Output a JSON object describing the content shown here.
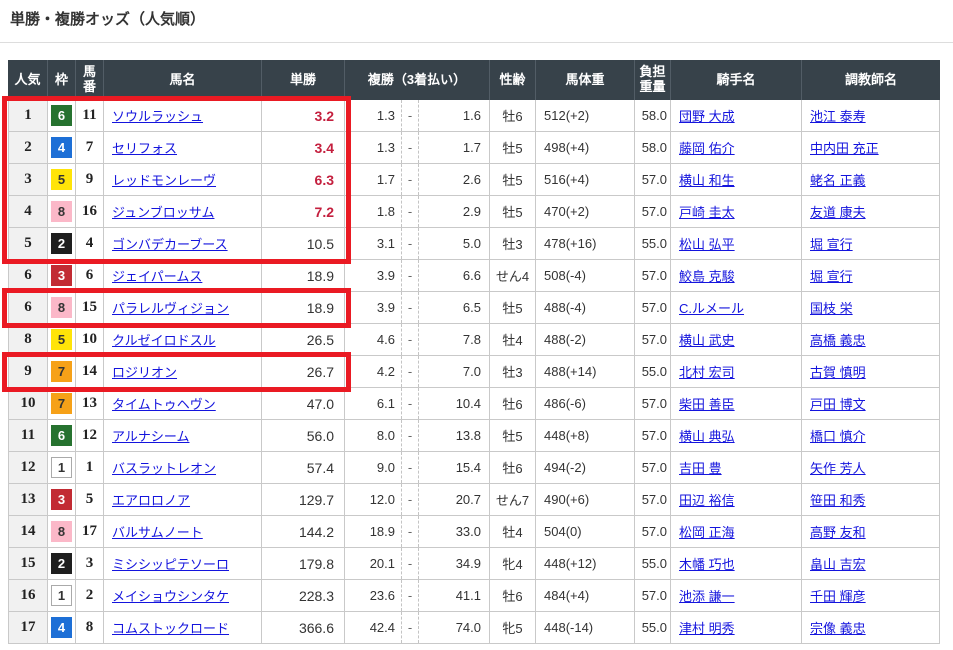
{
  "page": {
    "title": "単勝・複勝オッズ（人気順）"
  },
  "colors": {
    "header_bg": "#37424a",
    "link": "#1414dd",
    "hot_odds_red": "#c41f3e",
    "highlight_red": "#ea1a23"
  },
  "table": {
    "headers": {
      "ninki": "人気",
      "waku": "枠",
      "umaban": "馬番",
      "bamei": "馬名",
      "tansho": "単勝",
      "fukusho": "複勝（3着払い）",
      "seirei": "性齢",
      "bataiju": "馬体重",
      "futan": "負担重量",
      "kishu": "騎手名",
      "chokyoshi": "調教師名"
    },
    "place_dash": "-",
    "rows": [
      {
        "rank": "1",
        "waku": "6",
        "umaban": "11",
        "name": "ソウルラッシュ",
        "win": "3.2",
        "win_hot": true,
        "place_low": "1.3",
        "place_high": "1.6",
        "sex_age": "牡6",
        "weight": "512(+2)",
        "carry": "58.0",
        "jockey": "団野 大成",
        "trainer": "池江 泰寿"
      },
      {
        "rank": "2",
        "waku": "4",
        "umaban": "7",
        "name": "セリフォス",
        "win": "3.4",
        "win_hot": true,
        "place_low": "1.3",
        "place_high": "1.7",
        "sex_age": "牡5",
        "weight": "498(+4)",
        "carry": "58.0",
        "jockey": "藤岡 佑介",
        "trainer": "中内田 充正"
      },
      {
        "rank": "3",
        "waku": "5",
        "umaban": "9",
        "name": "レッドモンレーヴ",
        "win": "6.3",
        "win_hot": true,
        "place_low": "1.7",
        "place_high": "2.6",
        "sex_age": "牡5",
        "weight": "516(+4)",
        "carry": "57.0",
        "jockey": "横山 和生",
        "trainer": "蛯名 正義"
      },
      {
        "rank": "4",
        "waku": "8",
        "umaban": "16",
        "name": "ジュンブロッサム",
        "win": "7.2",
        "win_hot": true,
        "place_low": "1.8",
        "place_high": "2.9",
        "sex_age": "牡5",
        "weight": "470(+2)",
        "carry": "57.0",
        "jockey": "戸崎 圭太",
        "trainer": "友道 康夫"
      },
      {
        "rank": "5",
        "waku": "2",
        "umaban": "4",
        "name": "ゴンバデカーブース",
        "win": "10.5",
        "win_hot": false,
        "place_low": "3.1",
        "place_high": "5.0",
        "sex_age": "牡3",
        "weight": "478(+16)",
        "carry": "55.0",
        "jockey": "松山 弘平",
        "trainer": "堀 宣行"
      },
      {
        "rank": "6",
        "waku": "3",
        "umaban": "6",
        "name": "ジェイパームス",
        "win": "18.9",
        "win_hot": false,
        "place_low": "3.9",
        "place_high": "6.6",
        "sex_age": "せん4",
        "weight": "508(-4)",
        "carry": "57.0",
        "jockey": "鮫島 克駿",
        "trainer": "堀 宣行"
      },
      {
        "rank": "6",
        "waku": "8",
        "umaban": "15",
        "name": "パラレルヴィジョン",
        "win": "18.9",
        "win_hot": false,
        "place_low": "3.9",
        "place_high": "6.5",
        "sex_age": "牡5",
        "weight": "488(-4)",
        "carry": "57.0",
        "jockey": "C.ルメール",
        "trainer": "国枝 栄"
      },
      {
        "rank": "8",
        "waku": "5",
        "umaban": "10",
        "name": "クルゼイロドスル",
        "win": "26.5",
        "win_hot": false,
        "place_low": "4.6",
        "place_high": "7.8",
        "sex_age": "牡4",
        "weight": "488(-2)",
        "carry": "57.0",
        "jockey": "横山 武史",
        "trainer": "高橋 義忠"
      },
      {
        "rank": "9",
        "waku": "7",
        "umaban": "14",
        "name": "ロジリオン",
        "win": "26.7",
        "win_hot": false,
        "place_low": "4.2",
        "place_high": "7.0",
        "sex_age": "牡3",
        "weight": "488(+14)",
        "carry": "55.0",
        "jockey": "北村 宏司",
        "trainer": "古賀 慎明"
      },
      {
        "rank": "10",
        "waku": "7",
        "umaban": "13",
        "name": "タイムトゥヘヴン",
        "win": "47.0",
        "win_hot": false,
        "place_low": "6.1",
        "place_high": "10.4",
        "sex_age": "牡6",
        "weight": "486(-6)",
        "carry": "57.0",
        "jockey": "柴田 善臣",
        "trainer": "戸田 博文"
      },
      {
        "rank": "11",
        "waku": "6",
        "umaban": "12",
        "name": "アルナシーム",
        "win": "56.0",
        "win_hot": false,
        "place_low": "8.0",
        "place_high": "13.8",
        "sex_age": "牡5",
        "weight": "448(+8)",
        "carry": "57.0",
        "jockey": "横山 典弘",
        "trainer": "橋口 慎介"
      },
      {
        "rank": "12",
        "waku": "1",
        "umaban": "1",
        "name": "バスラットレオン",
        "win": "57.4",
        "win_hot": false,
        "place_low": "9.0",
        "place_high": "15.4",
        "sex_age": "牡6",
        "weight": "494(-2)",
        "carry": "57.0",
        "jockey": "吉田 豊",
        "trainer": "矢作 芳人"
      },
      {
        "rank": "13",
        "waku": "3",
        "umaban": "5",
        "name": "エアロロノア",
        "win": "129.7",
        "win_hot": false,
        "place_low": "12.0",
        "place_high": "20.7",
        "sex_age": "せん7",
        "weight": "490(+6)",
        "carry": "57.0",
        "jockey": "田辺 裕信",
        "trainer": "笹田 和秀"
      },
      {
        "rank": "14",
        "waku": "8",
        "umaban": "17",
        "name": "バルサムノート",
        "win": "144.2",
        "win_hot": false,
        "place_low": "18.9",
        "place_high": "33.0",
        "sex_age": "牡4",
        "weight": "504(0)",
        "carry": "57.0",
        "jockey": "松岡 正海",
        "trainer": "高野 友和"
      },
      {
        "rank": "15",
        "waku": "2",
        "umaban": "3",
        "name": "ミシシッピテソーロ",
        "win": "179.8",
        "win_hot": false,
        "place_low": "20.1",
        "place_high": "34.9",
        "sex_age": "牝4",
        "weight": "448(+12)",
        "carry": "55.0",
        "jockey": "木幡 巧也",
        "trainer": "畠山 吉宏"
      },
      {
        "rank": "16",
        "waku": "1",
        "umaban": "2",
        "name": "メイショウシンタケ",
        "win": "228.3",
        "win_hot": false,
        "place_low": "23.6",
        "place_high": "41.1",
        "sex_age": "牡6",
        "weight": "484(+4)",
        "carry": "57.0",
        "jockey": "池添 謙一",
        "trainer": "千田 輝彦"
      },
      {
        "rank": "17",
        "waku": "4",
        "umaban": "8",
        "name": "コムストックロード",
        "win": "366.6",
        "win_hot": false,
        "place_low": "42.4",
        "place_high": "74.0",
        "sex_age": "牝5",
        "weight": "448(-14)",
        "carry": "55.0",
        "jockey": "津村 明秀",
        "trainer": "宗像 義忠"
      }
    ],
    "highlight_groups": [
      {
        "from_row": 0,
        "to_row": 4
      },
      {
        "from_row": 6,
        "to_row": 6
      },
      {
        "from_row": 8,
        "to_row": 8
      }
    ]
  },
  "waku_colors": {
    "1": {
      "bg": "#ffffff",
      "fg": "#333333",
      "border": "#aaaaaa"
    },
    "2": {
      "bg": "#1e1e1e",
      "fg": "#ffffff",
      "border": "#1e1e1e"
    },
    "3": {
      "bg": "#c22b33",
      "fg": "#ffffff",
      "border": "#c22b33"
    },
    "4": {
      "bg": "#1d6fd6",
      "fg": "#ffffff",
      "border": "#1d6fd6"
    },
    "5": {
      "bg": "#ffe408",
      "fg": "#333333",
      "border": "#ffe408"
    },
    "6": {
      "bg": "#26722f",
      "fg": "#ffffff",
      "border": "#26722f"
    },
    "7": {
      "bg": "#f6a118",
      "fg": "#333333",
      "border": "#f6a118"
    },
    "8": {
      "bg": "#fbb8c8",
      "fg": "#333333",
      "border": "#fbb8c8"
    }
  }
}
